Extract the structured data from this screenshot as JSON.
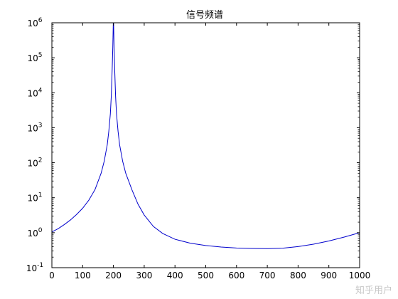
{
  "chart_data": {
    "type": "line",
    "title": "信号频谱",
    "xlabel": "",
    "ylabel": "",
    "xlim": [
      0,
      1000
    ],
    "ylim": [
      0.1,
      1000000
    ],
    "yscale": "log",
    "grid": false,
    "x_ticks": [
      "0",
      "100",
      "200",
      "300",
      "400",
      "500",
      "600",
      "700",
      "800",
      "900",
      "1000"
    ],
    "y_ticks": [
      {
        "base": "10",
        "exp": "-1"
      },
      {
        "base": "10",
        "exp": "0"
      },
      {
        "base": "10",
        "exp": "1"
      },
      {
        "base": "10",
        "exp": "2"
      },
      {
        "base": "10",
        "exp": "3"
      },
      {
        "base": "10",
        "exp": "4"
      },
      {
        "base": "10",
        "exp": "5"
      },
      {
        "base": "10",
        "exp": "6"
      }
    ],
    "series": [
      {
        "color": "#0000cc",
        "x": [
          0,
          20,
          40,
          60,
          80,
          100,
          120,
          140,
          160,
          170,
          180,
          185,
          190,
          193,
          196,
          198,
          199,
          199.5,
          200,
          200.5,
          201,
          202,
          204,
          207,
          210,
          215,
          220,
          230,
          240,
          260,
          280,
          300,
          330,
          360,
          400,
          450,
          500,
          550,
          600,
          650,
          700,
          750,
          800,
          850,
          900,
          950,
          1000
        ],
        "y": [
          1.05,
          1.3,
          1.7,
          2.3,
          3.3,
          5.0,
          8.5,
          17,
          50,
          110,
          330,
          800,
          2500,
          8000,
          50000,
          200000,
          600000,
          1000000,
          1000000,
          1000000,
          600000,
          200000,
          50000,
          8000,
          2500,
          800,
          330,
          110,
          50,
          17,
          6.5,
          3.2,
          1.5,
          0.95,
          0.65,
          0.5,
          0.43,
          0.39,
          0.365,
          0.355,
          0.35,
          0.36,
          0.4,
          0.47,
          0.58,
          0.75,
          1.0
        ]
      }
    ]
  },
  "watermark": "知乎用户"
}
